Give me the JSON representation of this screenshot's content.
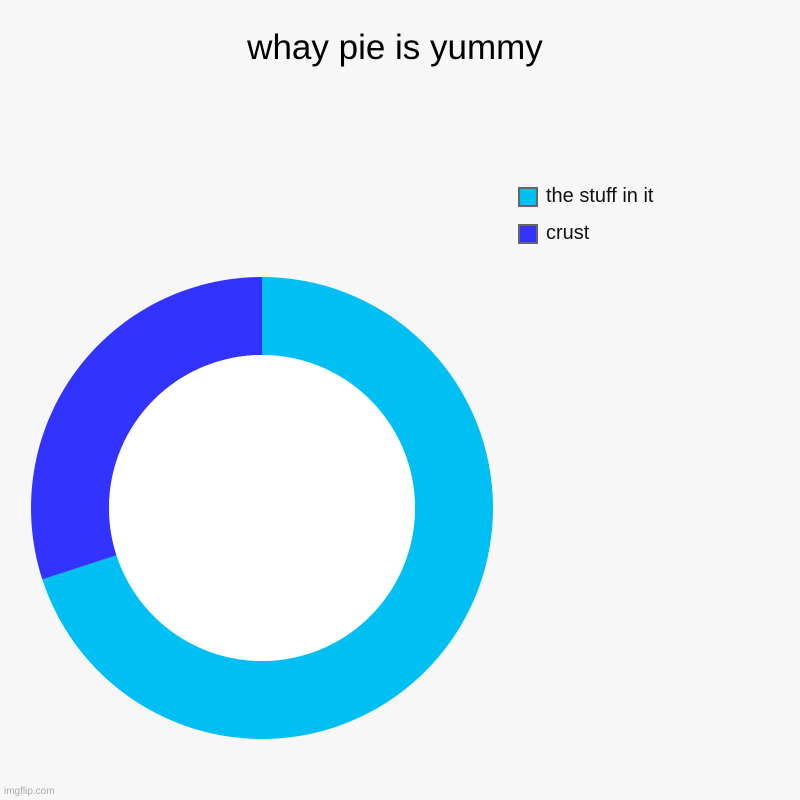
{
  "chart_data": {
    "type": "pie",
    "style": "donut",
    "title": "whay pie is yummy",
    "categories": [
      "the stuff in it",
      "crust"
    ],
    "values": [
      70,
      30
    ],
    "colors": [
      "#00c0f3",
      "#3333ff"
    ],
    "legend_placement": "top-right"
  },
  "watermark": "imgflip.com"
}
